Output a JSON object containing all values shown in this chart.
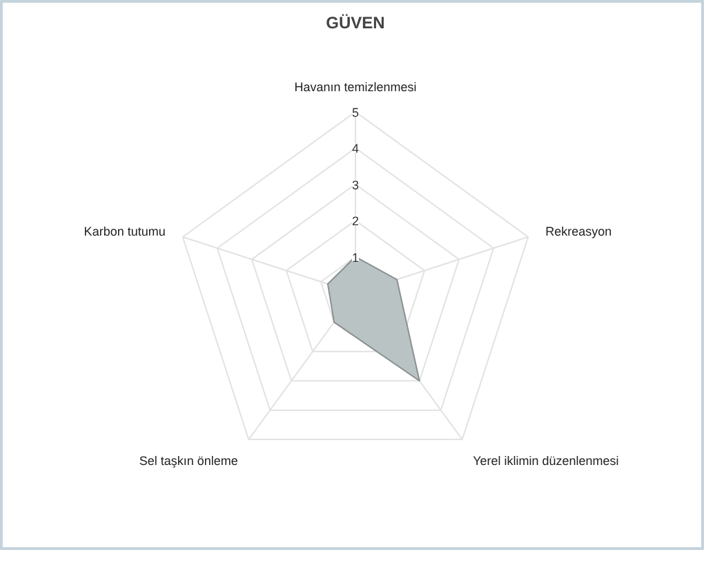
{
  "chart_data": {
    "type": "radar",
    "title": "GÜVEN",
    "categories": [
      "Havanın temizlenmesi",
      "Rekreasyon",
      "Yerel iklimin düzenlenmesi",
      "Sel taşkın önleme",
      "Karbon tutumu"
    ],
    "series": [
      {
        "color": "#b9c3c3",
        "values": [
          1,
          1.2,
          3,
          1,
          0.8
        ]
      }
    ],
    "ylim": [
      0,
      5
    ],
    "yticks": [
      {
        "value": 1,
        "label": "1"
      },
      {
        "value": 2,
        "label": "2"
      },
      {
        "value": 3,
        "label": "3"
      },
      {
        "value": 4,
        "label": "4"
      },
      {
        "value": 5,
        "label": "5"
      }
    ],
    "grid": true
  }
}
